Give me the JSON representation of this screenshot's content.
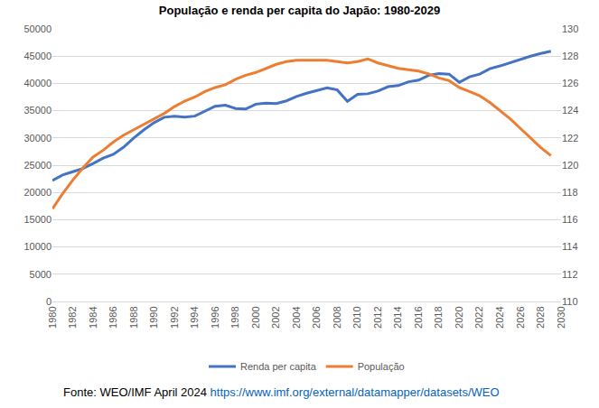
{
  "chart_data": {
    "type": "line",
    "title": "População e renda per capita do Japão: 1980-2029",
    "annotations": [
      "Fonte: WEO/IMF April 2024",
      "https://www.imf.org/external/datamapper/datasets/WEO"
    ],
    "x": [
      1980,
      1981,
      1982,
      1983,
      1984,
      1985,
      1986,
      1987,
      1988,
      1989,
      1990,
      1991,
      1992,
      1993,
      1994,
      1995,
      1996,
      1997,
      1998,
      1999,
      2000,
      2001,
      2002,
      2003,
      2004,
      2005,
      2006,
      2007,
      2008,
      2009,
      2010,
      2011,
      2012,
      2013,
      2014,
      2015,
      2016,
      2017,
      2018,
      2019,
      2020,
      2021,
      2022,
      2023,
      2024,
      2025,
      2026,
      2027,
      2028,
      2029
    ],
    "series": [
      {
        "name": "Renda per capita",
        "color": "#4472c4",
        "axis": "y",
        "values": [
          22200,
          23200,
          23800,
          24400,
          25300,
          26300,
          27000,
          28300,
          30000,
          31500,
          32800,
          33800,
          34000,
          33800,
          34000,
          34900,
          35800,
          36000,
          35400,
          35300,
          36200,
          36400,
          36300,
          36800,
          37600,
          38200,
          38700,
          39200,
          38800,
          36700,
          38000,
          38100,
          38600,
          39400,
          39600,
          40300,
          40600,
          41500,
          41800,
          41700,
          40200,
          41200,
          41700,
          42700,
          43200,
          43800,
          44500,
          45000,
          45500,
          45900
        ]
      },
      {
        "name": "População",
        "color": "#ed7d31",
        "axis": "y2",
        "values": [
          116.8,
          117.9,
          118.9,
          119.8,
          120.6,
          121.1,
          121.7,
          122.2,
          122.6,
          123.0,
          123.4,
          123.8,
          124.3,
          124.7,
          125.0,
          125.4,
          125.7,
          125.9,
          126.3,
          126.6,
          126.8,
          127.1,
          127.4,
          127.6,
          127.7,
          127.7,
          127.7,
          127.7,
          127.6,
          127.5,
          127.6,
          127.8,
          127.5,
          127.3,
          127.1,
          127.0,
          126.9,
          126.7,
          126.4,
          126.2,
          125.7,
          125.4,
          125.1,
          124.6,
          124.0,
          123.4,
          122.7,
          122.0,
          121.3,
          120.7
        ]
      }
    ],
    "xlim": [
      1980,
      2030
    ],
    "xticks": [
      1980,
      1982,
      1984,
      1986,
      1988,
      1990,
      1992,
      1994,
      1996,
      1998,
      2000,
      2002,
      2004,
      2006,
      2008,
      2010,
      2012,
      2014,
      2016,
      2018,
      2020,
      2022,
      2024,
      2026,
      2028,
      2030
    ],
    "ylim": [
      0,
      50000
    ],
    "yticks": [
      0,
      5000,
      10000,
      15000,
      20000,
      25000,
      30000,
      35000,
      40000,
      45000,
      50000
    ],
    "y2lim": [
      110,
      130
    ],
    "y2ticks": [
      110,
      112,
      114,
      116,
      118,
      120,
      122,
      124,
      126,
      128,
      130
    ],
    "grid": true,
    "legend": "bottom"
  }
}
